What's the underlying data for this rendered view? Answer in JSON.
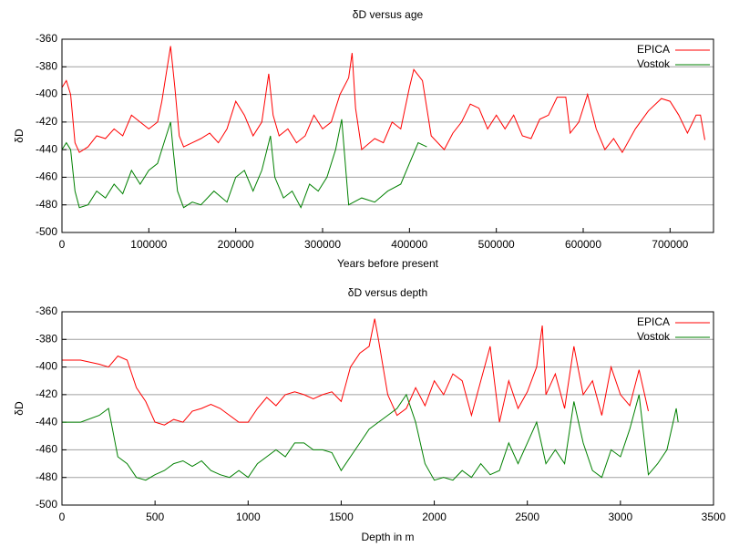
{
  "chart_data": [
    {
      "type": "line",
      "title": "δD versus age",
      "xlabel": "Years before present",
      "ylabel": "δD",
      "xlim": [
        0,
        750000
      ],
      "ylim": [
        -500,
        -360
      ],
      "xticks": [
        0,
        100000,
        200000,
        300000,
        400000,
        500000,
        600000,
        700000
      ],
      "yticks": [
        -500,
        -480,
        -460,
        -440,
        -420,
        -400,
        -380,
        -360
      ],
      "grid": true,
      "legend": "upper right",
      "series": [
        {
          "name": "EPICA",
          "color": "#ff0000",
          "x": [
            0,
            5000,
            10000,
            15000,
            20000,
            30000,
            40000,
            50000,
            60000,
            70000,
            80000,
            90000,
            100000,
            110000,
            115000,
            120000,
            125000,
            130000,
            135000,
            140000,
            150000,
            160000,
            170000,
            180000,
            190000,
            200000,
            210000,
            220000,
            230000,
            238000,
            243000,
            250000,
            260000,
            270000,
            280000,
            290000,
            300000,
            310000,
            320000,
            330000,
            334000,
            338000,
            345000,
            360000,
            370000,
            380000,
            390000,
            400000,
            405000,
            415000,
            425000,
            440000,
            450000,
            460000,
            470000,
            480000,
            490000,
            500000,
            510000,
            520000,
            530000,
            540000,
            550000,
            560000,
            570000,
            580000,
            585000,
            595000,
            605000,
            615000,
            625000,
            635000,
            645000,
            660000,
            675000,
            690000,
            700000,
            710000,
            720000,
            730000,
            735000,
            740000
          ],
          "values": [
            -395,
            -390,
            -400,
            -435,
            -442,
            -438,
            -430,
            -432,
            -425,
            -430,
            -415,
            -420,
            -425,
            -420,
            -405,
            -385,
            -365,
            -395,
            -430,
            -438,
            -435,
            -432,
            -428,
            -435,
            -425,
            -405,
            -415,
            -430,
            -420,
            -385,
            -415,
            -430,
            -425,
            -435,
            -430,
            -415,
            -425,
            -420,
            -400,
            -388,
            -370,
            -410,
            -440,
            -432,
            -435,
            -420,
            -425,
            -395,
            -382,
            -390,
            -430,
            -440,
            -428,
            -420,
            -407,
            -410,
            -425,
            -415,
            -425,
            -415,
            -430,
            -432,
            -418,
            -415,
            -402,
            -402,
            -428,
            -420,
            -400,
            -425,
            -440,
            -432,
            -442,
            -425,
            -412,
            -403,
            -405,
            -415,
            -428,
            -415,
            -415,
            -433
          ]
        },
        {
          "name": "Vostok",
          "color": "#008000",
          "x": [
            0,
            5000,
            10000,
            15000,
            20000,
            30000,
            40000,
            50000,
            60000,
            70000,
            80000,
            90000,
            100000,
            110000,
            115000,
            125000,
            128000,
            133000,
            140000,
            150000,
            160000,
            175000,
            190000,
            200000,
            210000,
            220000,
            230000,
            240000,
            245000,
            255000,
            265000,
            275000,
            285000,
            295000,
            305000,
            315000,
            322000,
            330000,
            345000,
            360000,
            375000,
            390000,
            400000,
            410000,
            420000
          ],
          "values": [
            -440,
            -435,
            -440,
            -470,
            -482,
            -480,
            -470,
            -475,
            -465,
            -472,
            -455,
            -465,
            -455,
            -450,
            -440,
            -420,
            -440,
            -470,
            -482,
            -478,
            -480,
            -470,
            -478,
            -460,
            -455,
            -470,
            -455,
            -430,
            -460,
            -475,
            -470,
            -482,
            -465,
            -470,
            -460,
            -440,
            -418,
            -480,
            -475,
            -478,
            -470,
            -465,
            -450,
            -435,
            -438
          ]
        }
      ]
    },
    {
      "type": "line",
      "title": "δD versus depth",
      "xlabel": "Depth in m",
      "ylabel": "δD",
      "xlim": [
        0,
        3500
      ],
      "ylim": [
        -500,
        -360
      ],
      "xticks": [
        0,
        500,
        1000,
        1500,
        2000,
        2500,
        3000,
        3500
      ],
      "yticks": [
        -500,
        -480,
        -460,
        -440,
        -420,
        -400,
        -380,
        -360
      ],
      "grid": true,
      "legend": "upper right",
      "series": [
        {
          "name": "EPICA",
          "color": "#ff0000",
          "x": [
            0,
            100,
            200,
            250,
            300,
            350,
            400,
            450,
            500,
            550,
            600,
            650,
            700,
            750,
            800,
            850,
            900,
            950,
            1000,
            1050,
            1100,
            1150,
            1200,
            1250,
            1300,
            1350,
            1400,
            1450,
            1500,
            1550,
            1600,
            1650,
            1680,
            1700,
            1750,
            1800,
            1850,
            1900,
            1950,
            2000,
            2050,
            2100,
            2150,
            2200,
            2250,
            2300,
            2350,
            2400,
            2450,
            2500,
            2550,
            2580,
            2600,
            2650,
            2700,
            2750,
            2800,
            2850,
            2900,
            2950,
            3000,
            3050,
            3100,
            3150
          ],
          "values": [
            -395,
            -395,
            -398,
            -400,
            -392,
            -395,
            -415,
            -425,
            -440,
            -442,
            -438,
            -440,
            -432,
            -430,
            -427,
            -430,
            -435,
            -440,
            -440,
            -430,
            -422,
            -428,
            -420,
            -418,
            -420,
            -423,
            -420,
            -418,
            -425,
            -400,
            -390,
            -385,
            -365,
            -380,
            -420,
            -435,
            -430,
            -415,
            -428,
            -410,
            -420,
            -405,
            -410,
            -435,
            -410,
            -385,
            -440,
            -410,
            -430,
            -418,
            -400,
            -370,
            -420,
            -405,
            -430,
            -385,
            -420,
            -410,
            -435,
            -400,
            -420,
            -428,
            -402,
            -432
          ]
        },
        {
          "name": "Vostok",
          "color": "#008000",
          "x": [
            0,
            100,
            200,
            250,
            300,
            350,
            400,
            450,
            500,
            550,
            600,
            650,
            700,
            750,
            800,
            850,
            900,
            950,
            1000,
            1050,
            1100,
            1150,
            1200,
            1250,
            1300,
            1350,
            1400,
            1450,
            1500,
            1550,
            1600,
            1650,
            1700,
            1750,
            1800,
            1850,
            1900,
            1950,
            2000,
            2050,
            2100,
            2150,
            2200,
            2250,
            2300,
            2350,
            2400,
            2450,
            2500,
            2550,
            2600,
            2650,
            2700,
            2750,
            2800,
            2850,
            2900,
            2950,
            3000,
            3050,
            3100,
            3150,
            3200,
            3250,
            3300,
            3310
          ],
          "values": [
            -440,
            -440,
            -435,
            -430,
            -465,
            -470,
            -480,
            -482,
            -478,
            -475,
            -470,
            -468,
            -472,
            -468,
            -475,
            -478,
            -480,
            -475,
            -480,
            -470,
            -465,
            -460,
            -465,
            -455,
            -455,
            -460,
            -460,
            -462,
            -475,
            -465,
            -455,
            -445,
            -440,
            -435,
            -430,
            -420,
            -440,
            -470,
            -482,
            -480,
            -482,
            -475,
            -480,
            -470,
            -478,
            -475,
            -455,
            -470,
            -455,
            -440,
            -470,
            -460,
            -470,
            -425,
            -455,
            -475,
            -480,
            -460,
            -465,
            -445,
            -420,
            -478,
            -470,
            -460,
            -430,
            -440
          ]
        }
      ]
    }
  ]
}
